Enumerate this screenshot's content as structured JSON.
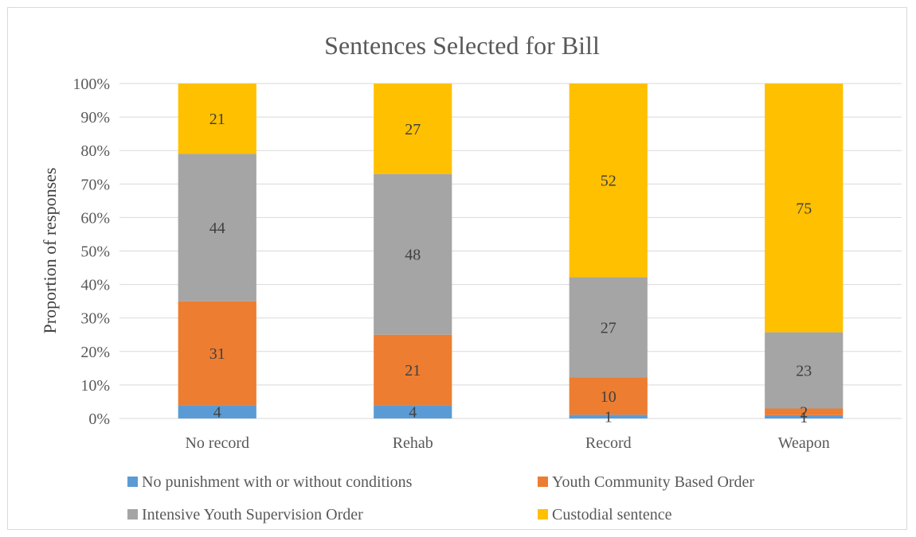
{
  "chart_data": {
    "type": "bar",
    "stacked": true,
    "normalized": true,
    "title": "Sentences Selected for Bill",
    "xlabel": "",
    "ylabel": "Proportion of responses",
    "ylim": [
      0,
      100
    ],
    "yticks": [
      "0%",
      "10%",
      "20%",
      "30%",
      "40%",
      "50%",
      "60%",
      "70%",
      "80%",
      "90%",
      "100%"
    ],
    "categories": [
      "No record",
      "Rehab",
      "Record",
      "Weapon"
    ],
    "series": [
      {
        "name": "No punishment with or without conditions",
        "color": "#5b9bd5",
        "values": [
          4,
          4,
          1,
          1
        ]
      },
      {
        "name": "Youth Community Based Order",
        "color": "#ed7d31",
        "values": [
          31,
          21,
          10,
          2
        ]
      },
      {
        "name": "Intensive Youth Supervision Order",
        "color": "#a5a5a5",
        "values": [
          44,
          48,
          27,
          23
        ]
      },
      {
        "name": "Custodial sentence",
        "color": "#ffc000",
        "values": [
          21,
          27,
          52,
          75
        ]
      }
    ],
    "grid": true,
    "legend_position": "bottom"
  }
}
